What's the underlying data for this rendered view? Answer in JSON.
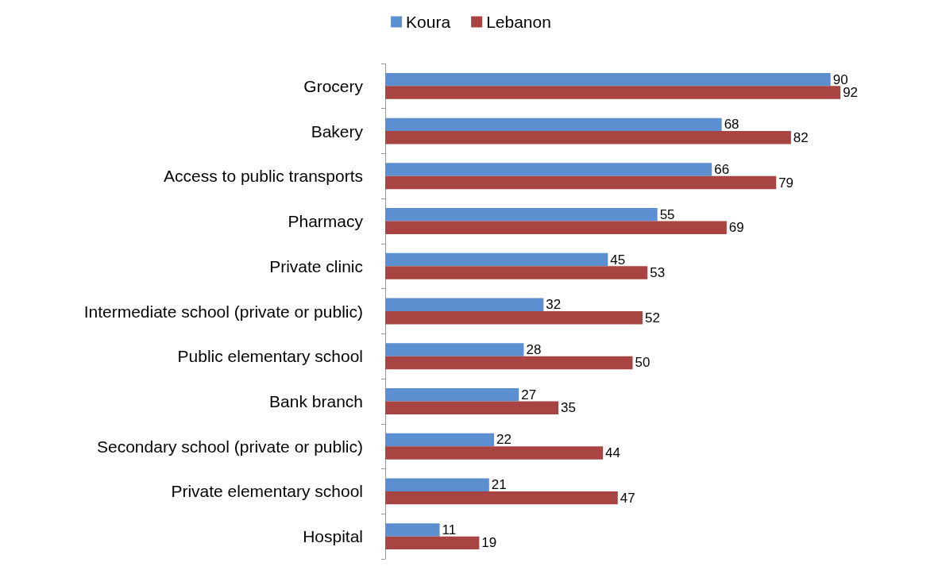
{
  "chart_data": {
    "type": "bar",
    "orientation": "horizontal",
    "categories": [
      "Grocery",
      "Bakery",
      "Access to public transports",
      "Pharmacy",
      "Private clinic",
      "Intermediate school (private or public)",
      "Public elementary school",
      "Bank branch",
      "Secondary school (private or public)",
      "Private elementary school",
      "Hospital"
    ],
    "series": [
      {
        "name": "Koura",
        "color": "#5b8fd0",
        "values": [
          90,
          68,
          66,
          55,
          45,
          32,
          28,
          27,
          22,
          21,
          11
        ]
      },
      {
        "name": "Lebanon",
        "color": "#a84543",
        "values": [
          92,
          82,
          79,
          69,
          53,
          52,
          50,
          35,
          44,
          47,
          19
        ]
      }
    ],
    "data_labels": true,
    "legend": "top",
    "tick_labels": "y"
  }
}
